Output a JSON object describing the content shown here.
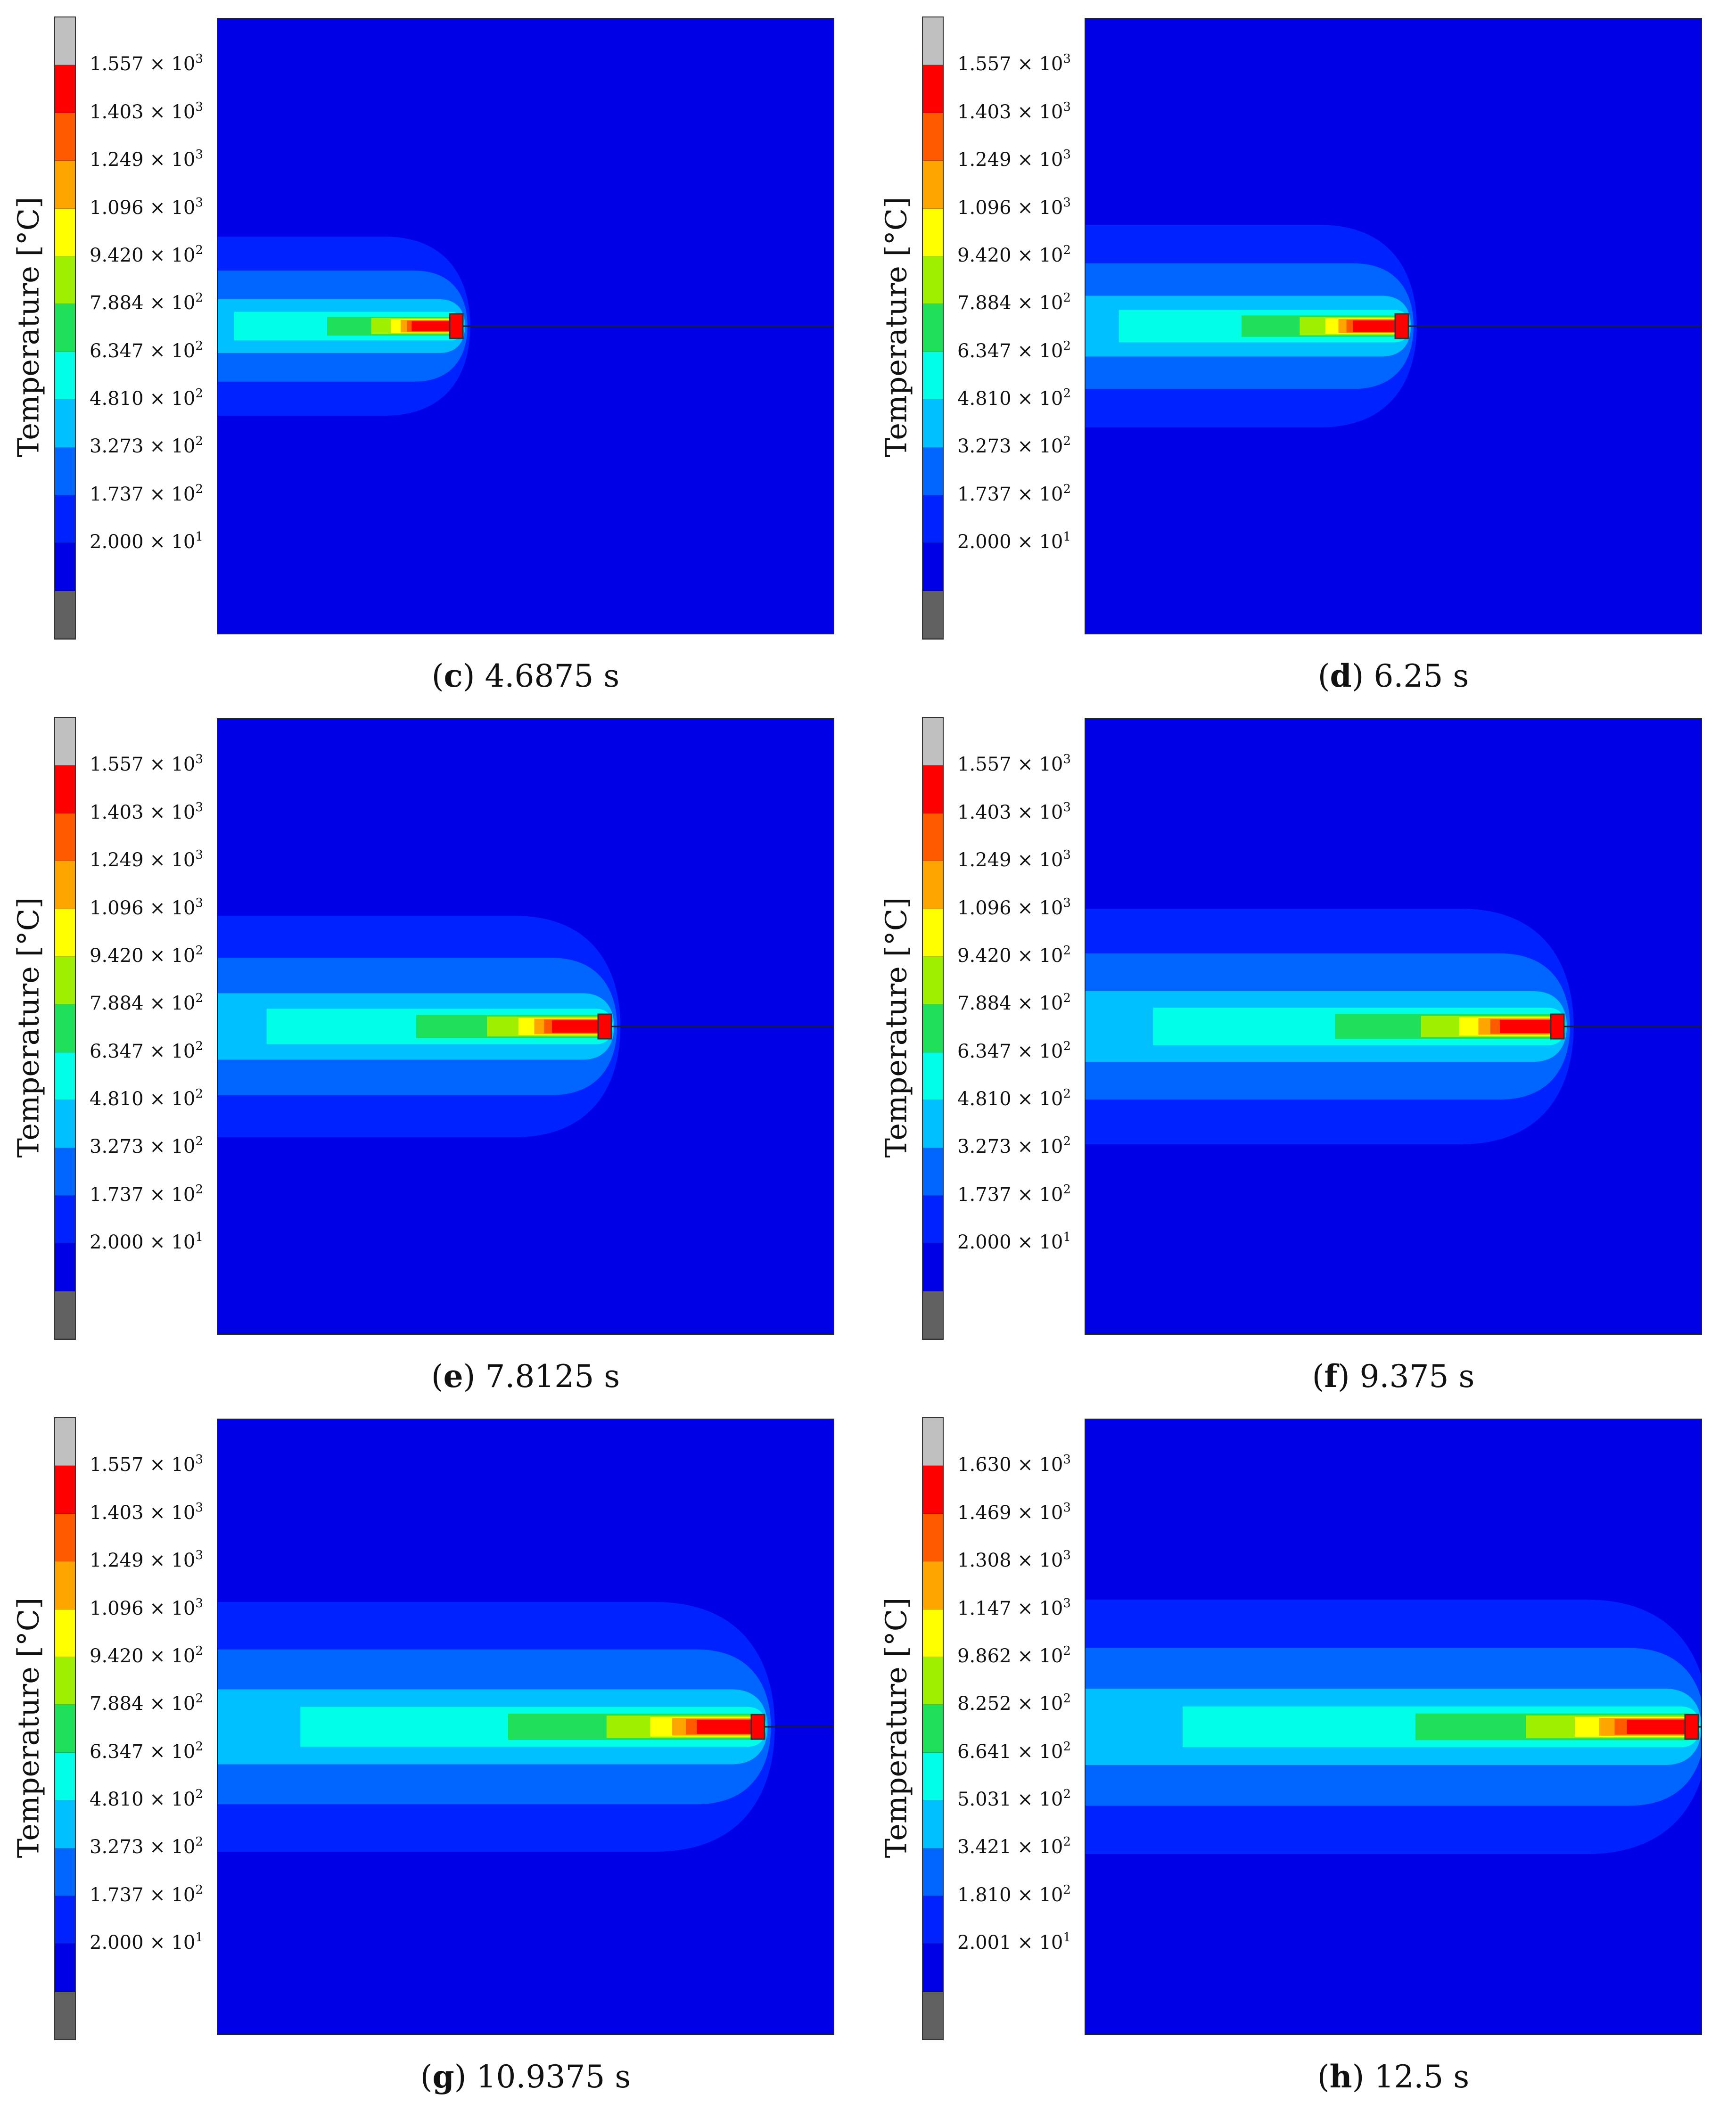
{
  "axis_title": "Temperature [°C]",
  "colors": [
    "#c0c0c0",
    "#ff0000",
    "#ff5a00",
    "#ffa500",
    "#ffff00",
    "#9ef000",
    "#1fe05a",
    "#00ffe6",
    "#00c0ff",
    "#0066ff",
    "#0022ff",
    "#0000e6",
    "#606060"
  ],
  "chart_data": [
    {
      "type": "heatmap",
      "letter": "c",
      "time_label": "4.6875 s",
      "time_s": 4.6875,
      "legend": [
        {
          "mantissa": "1.557",
          "base": "× 10",
          "exp": "3"
        },
        {
          "mantissa": "1.403",
          "base": "× 10",
          "exp": "3"
        },
        {
          "mantissa": "1.249",
          "base": "× 10",
          "exp": "3"
        },
        {
          "mantissa": "1.096",
          "base": "× 10",
          "exp": "3"
        },
        {
          "mantissa": "9.420",
          "base": "× 10",
          "exp": "2"
        },
        {
          "mantissa": "7.884",
          "base": "× 10",
          "exp": "2"
        },
        {
          "mantissa": "6.347",
          "base": "× 10",
          "exp": "2"
        },
        {
          "mantissa": "4.810",
          "base": "× 10",
          "exp": "2"
        },
        {
          "mantissa": "3.273",
          "base": "× 10",
          "exp": "2"
        },
        {
          "mantissa": "1.737",
          "base": "× 10",
          "exp": "2"
        },
        {
          "mantissa": "2.000",
          "base": "× 10",
          "exp": "1"
        }
      ],
      "legend_values": [
        1557,
        1403,
        1249,
        1096,
        942.0,
        788.4,
        634.7,
        481.0,
        327.3,
        173.7,
        20.0
      ]
    },
    {
      "type": "heatmap",
      "letter": "d",
      "time_label": "6.25 s",
      "time_s": 6.25,
      "legend": [
        {
          "mantissa": "1.557",
          "base": "× 10",
          "exp": "3"
        },
        {
          "mantissa": "1.403",
          "base": "× 10",
          "exp": "3"
        },
        {
          "mantissa": "1.249",
          "base": "× 10",
          "exp": "3"
        },
        {
          "mantissa": "1.096",
          "base": "× 10",
          "exp": "3"
        },
        {
          "mantissa": "9.420",
          "base": "× 10",
          "exp": "2"
        },
        {
          "mantissa": "7.884",
          "base": "× 10",
          "exp": "2"
        },
        {
          "mantissa": "6.347",
          "base": "× 10",
          "exp": "2"
        },
        {
          "mantissa": "4.810",
          "base": "× 10",
          "exp": "2"
        },
        {
          "mantissa": "3.273",
          "base": "× 10",
          "exp": "2"
        },
        {
          "mantissa": "1.737",
          "base": "× 10",
          "exp": "2"
        },
        {
          "mantissa": "2.000",
          "base": "× 10",
          "exp": "1"
        }
      ],
      "legend_values": [
        1557,
        1403,
        1249,
        1096,
        942.0,
        788.4,
        634.7,
        481.0,
        327.3,
        173.7,
        20.0
      ]
    },
    {
      "type": "heatmap",
      "letter": "e",
      "time_label": "7.8125 s",
      "time_s": 7.8125,
      "legend": [
        {
          "mantissa": "1.557",
          "base": "× 10",
          "exp": "3"
        },
        {
          "mantissa": "1.403",
          "base": "× 10",
          "exp": "3"
        },
        {
          "mantissa": "1.249",
          "base": "× 10",
          "exp": "3"
        },
        {
          "mantissa": "1.096",
          "base": "× 10",
          "exp": "3"
        },
        {
          "mantissa": "9.420",
          "base": "× 10",
          "exp": "2"
        },
        {
          "mantissa": "7.884",
          "base": "× 10",
          "exp": "2"
        },
        {
          "mantissa": "6.347",
          "base": "× 10",
          "exp": "2"
        },
        {
          "mantissa": "4.810",
          "base": "× 10",
          "exp": "2"
        },
        {
          "mantissa": "3.273",
          "base": "× 10",
          "exp": "2"
        },
        {
          "mantissa": "1.737",
          "base": "× 10",
          "exp": "2"
        },
        {
          "mantissa": "2.000",
          "base": "× 10",
          "exp": "1"
        }
      ],
      "legend_values": [
        1557,
        1403,
        1249,
        1096,
        942.0,
        788.4,
        634.7,
        481.0,
        327.3,
        173.7,
        20.0
      ]
    },
    {
      "type": "heatmap",
      "letter": "f",
      "time_label": "9.375 s",
      "time_s": 9.375,
      "legend": [
        {
          "mantissa": "1.557",
          "base": "× 10",
          "exp": "3"
        },
        {
          "mantissa": "1.403",
          "base": "× 10",
          "exp": "3"
        },
        {
          "mantissa": "1.249",
          "base": "× 10",
          "exp": "3"
        },
        {
          "mantissa": "1.096",
          "base": "× 10",
          "exp": "3"
        },
        {
          "mantissa": "9.420",
          "base": "× 10",
          "exp": "2"
        },
        {
          "mantissa": "7.884",
          "base": "× 10",
          "exp": "2"
        },
        {
          "mantissa": "6.347",
          "base": "× 10",
          "exp": "2"
        },
        {
          "mantissa": "4.810",
          "base": "× 10",
          "exp": "2"
        },
        {
          "mantissa": "3.273",
          "base": "× 10",
          "exp": "2"
        },
        {
          "mantissa": "1.737",
          "base": "× 10",
          "exp": "2"
        },
        {
          "mantissa": "2.000",
          "base": "× 10",
          "exp": "1"
        }
      ],
      "legend_values": [
        1557,
        1403,
        1249,
        1096,
        942.0,
        788.4,
        634.7,
        481.0,
        327.3,
        173.7,
        20.0
      ]
    },
    {
      "type": "heatmap",
      "letter": "g",
      "time_label": "10.9375 s",
      "time_s": 10.9375,
      "legend": [
        {
          "mantissa": "1.557",
          "base": "× 10",
          "exp": "3"
        },
        {
          "mantissa": "1.403",
          "base": "× 10",
          "exp": "3"
        },
        {
          "mantissa": "1.249",
          "base": "× 10",
          "exp": "3"
        },
        {
          "mantissa": "1.096",
          "base": "× 10",
          "exp": "3"
        },
        {
          "mantissa": "9.420",
          "base": "× 10",
          "exp": "2"
        },
        {
          "mantissa": "7.884",
          "base": "× 10",
          "exp": "2"
        },
        {
          "mantissa": "6.347",
          "base": "× 10",
          "exp": "2"
        },
        {
          "mantissa": "4.810",
          "base": "× 10",
          "exp": "2"
        },
        {
          "mantissa": "3.273",
          "base": "× 10",
          "exp": "2"
        },
        {
          "mantissa": "1.737",
          "base": "× 10",
          "exp": "2"
        },
        {
          "mantissa": "2.000",
          "base": "× 10",
          "exp": "1"
        }
      ],
      "legend_values": [
        1557,
        1403,
        1249,
        1096,
        942.0,
        788.4,
        634.7,
        481.0,
        327.3,
        173.7,
        20.0
      ]
    },
    {
      "type": "heatmap",
      "letter": "h",
      "time_label": "12.5 s",
      "time_s": 12.5,
      "legend": [
        {
          "mantissa": "1.630",
          "base": "× 10",
          "exp": "3"
        },
        {
          "mantissa": "1.469",
          "base": "× 10",
          "exp": "3"
        },
        {
          "mantissa": "1.308",
          "base": "× 10",
          "exp": "3"
        },
        {
          "mantissa": "1.147",
          "base": "× 10",
          "exp": "3"
        },
        {
          "mantissa": "9.862",
          "base": "× 10",
          "exp": "2"
        },
        {
          "mantissa": "8.252",
          "base": "× 10",
          "exp": "2"
        },
        {
          "mantissa": "6.641",
          "base": "× 10",
          "exp": "2"
        },
        {
          "mantissa": "5.031",
          "base": "× 10",
          "exp": "2"
        },
        {
          "mantissa": "3.421",
          "base": "× 10",
          "exp": "2"
        },
        {
          "mantissa": "1.810",
          "base": "× 10",
          "exp": "2"
        },
        {
          "mantissa": "2.001",
          "base": "× 10",
          "exp": "1"
        }
      ],
      "legend_values": [
        1630,
        1469,
        1308,
        1147,
        986.2,
        825.2,
        664.1,
        503.1,
        342.1,
        181.0,
        20.01
      ]
    }
  ]
}
